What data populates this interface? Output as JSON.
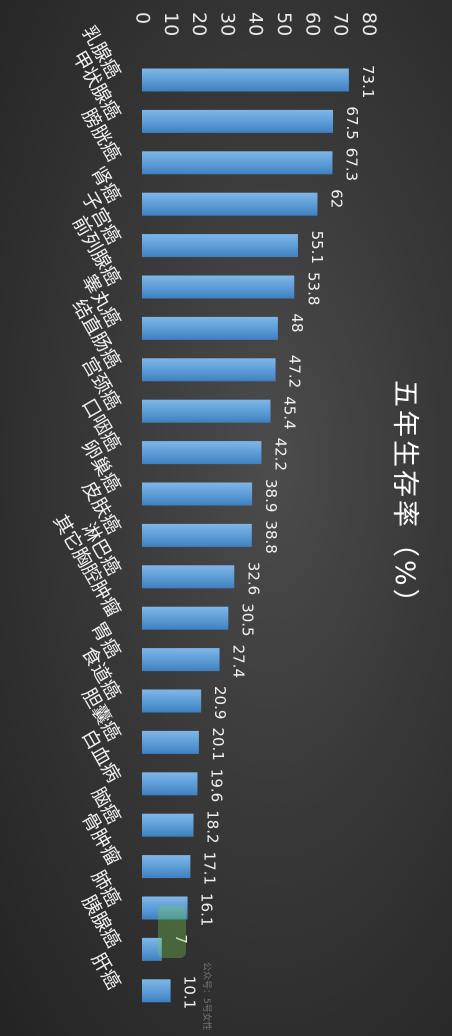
{
  "chart_data": {
    "type": "bar",
    "orientation": "horizontal",
    "title": "五年生存率（%）",
    "xlabel": "",
    "ylabel": "",
    "xlim": [
      0,
      80
    ],
    "ticks": [
      "0",
      "10",
      "20",
      "30",
      "40",
      "50",
      "60",
      "70",
      "80"
    ],
    "categories": [
      "乳腺癌",
      "甲状腺癌",
      "膀胱癌",
      "肾癌",
      "子宫癌",
      "前列腺癌",
      "睾丸癌",
      "结直肠癌",
      "宫颈癌",
      "口咽癌",
      "卵巢癌",
      "皮肤癌",
      "淋巴癌",
      "其它胸腔肿瘤",
      "胃癌",
      "食道癌",
      "胆囊癌",
      "白血病",
      "脑癌",
      "骨肿瘤",
      "肺癌",
      "胰腺癌",
      "肝癌"
    ],
    "values": [
      73.1,
      67.5,
      67.3,
      62,
      55.1,
      53.8,
      48,
      47.2,
      45.4,
      42.2,
      38.9,
      38.8,
      32.6,
      30.5,
      27.4,
      20.9,
      20.1,
      19.6,
      18.2,
      17.1,
      16.1,
      7,
      10.1
    ],
    "value_labels": [
      "73.1",
      "67.5",
      "67.3",
      "62",
      "55.1",
      "53.8",
      "48",
      "47.2",
      "45.4",
      "42.2",
      "38.9",
      "38.8",
      "32.6",
      "30.5",
      "27.4",
      "20.9",
      "20.1",
      "19.6",
      "18.2",
      "17.1",
      "16.1",
      "7",
      "10.1"
    ],
    "grid": false,
    "legend": "none",
    "bar_color": "#5b9bd5"
  },
  "watermark": "公众号：5号女性"
}
